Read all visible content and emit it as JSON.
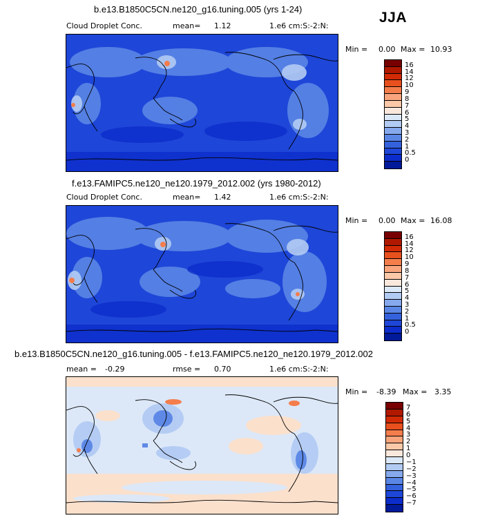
{
  "season": "JJA",
  "panels": [
    {
      "title": "b.e13.B1850C5CN.ne120_g16.tuning.005 (yrs 1-24)",
      "variable": "Cloud Droplet Conc.",
      "mean_label": "mean=",
      "mean_value": "1.12",
      "units": "1.e6 cm:S:-2:N:",
      "min_label": "Min =",
      "min_value": "0.00",
      "max_label": "Max =",
      "max_value": "10.93",
      "background_color": "#1e46d8",
      "colorbar_labels": [
        "16",
        "14",
        "12",
        "10",
        "9",
        "8",
        "7",
        "6",
        "5",
        "4",
        "3",
        "2",
        "1",
        "0.5",
        "0"
      ],
      "colorbar_colors": [
        "#780000",
        "#b01800",
        "#d22a06",
        "#e8501e",
        "#f47d4c",
        "#f8a47c",
        "#fbc8a8",
        "#fbe8dc",
        "#dbe8f8",
        "#b2cbf3",
        "#86a9ee",
        "#5a86e6",
        "#3462dc",
        "#1e46d8",
        "#0c2ccb",
        "#001a9a"
      ]
    },
    {
      "title": "f.e13.FAMIPC5.ne120_ne120.1979_2012.002 (yrs 1980-2012)",
      "variable": "Cloud Droplet Conc.",
      "mean_label": "mean=",
      "mean_value": "1.42",
      "units": "1.e6 cm:S:-2:N:",
      "min_label": "Min =",
      "min_value": "0.00",
      "max_label": "Max =",
      "max_value": "16.08",
      "background_color": "#1e46d8",
      "colorbar_labels": [
        "16",
        "14",
        "12",
        "10",
        "9",
        "8",
        "7",
        "6",
        "5",
        "4",
        "3",
        "2",
        "1",
        "0.5",
        "0"
      ],
      "colorbar_colors": [
        "#780000",
        "#b01800",
        "#d22a06",
        "#e8501e",
        "#f47d4c",
        "#f8a47c",
        "#fbc8a8",
        "#fbe8dc",
        "#dbe8f8",
        "#b2cbf3",
        "#86a9ee",
        "#5a86e6",
        "#3462dc",
        "#1e46d8",
        "#0c2ccb",
        "#001a9a"
      ]
    },
    {
      "title": "b.e13.B1850C5CN.ne120_g16.tuning.005 - f.e13.FAMIPC5.ne120_ne120.1979_2012.002",
      "mean_label": "mean =",
      "mean_value": "-0.29",
      "rmse_label": "rmse =",
      "rmse_value": "0.70",
      "units": "1.e6 cm:S:-2:N:",
      "min_label": "Min =",
      "min_value": "-8.39",
      "max_label": "Max =",
      "max_value": "3.35",
      "background_color": "#dce8f8",
      "colorbar_labels": [
        "7",
        "6",
        "5",
        "4",
        "3",
        "2",
        "1",
        "0",
        "−1",
        "−2",
        "−3",
        "−4",
        "−5",
        "−6",
        "−7"
      ],
      "colorbar_colors": [
        "#780000",
        "#b01800",
        "#d22a06",
        "#e8501e",
        "#f47d4c",
        "#f8a47c",
        "#fbc8a8",
        "#fbe8dc",
        "#dbe8f8",
        "#b2cbf3",
        "#86a9ee",
        "#5a86e6",
        "#3462dc",
        "#1e46d8",
        "#0c2ccb",
        "#001a9a"
      ]
    }
  ]
}
